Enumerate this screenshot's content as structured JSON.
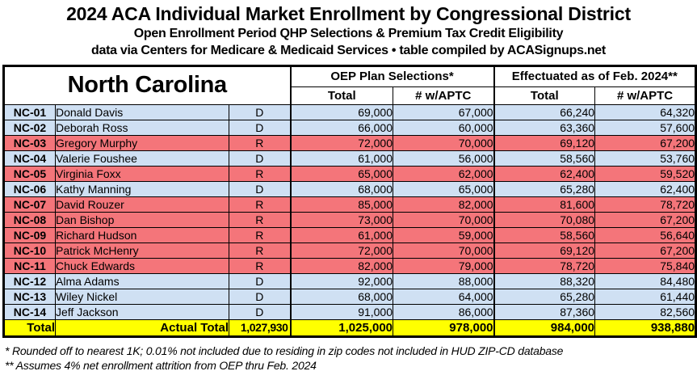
{
  "header": {
    "title": "2024 ACA Individual Market Enrollment by Congressional District",
    "subtitle": "Open Enrollment Period QHP Selections & Premium Tax Credit Eligibility",
    "source_line": "data via Centers for Medicare & Medicaid Services • table compiled by ACASignups.net"
  },
  "chart_data": {
    "type": "table",
    "title": "2024 ACA Individual Market Enrollment by Congressional District",
    "state": "North Carolina",
    "col_groups": [
      {
        "label": "OEP Plan Selections*",
        "cols": [
          "Total",
          "# w/APTC"
        ]
      },
      {
        "label": "Effectuated as of Feb. 2024**",
        "cols": [
          "Total",
          "# w/APTC"
        ]
      }
    ],
    "rows": [
      {
        "district": "NC-01",
        "rep": "Donald Davis",
        "party": "D",
        "values": [
          69000,
          67000,
          66240,
          64320
        ]
      },
      {
        "district": "NC-02",
        "rep": "Deborah Ross",
        "party": "D",
        "values": [
          66000,
          60000,
          63360,
          57600
        ]
      },
      {
        "district": "NC-03",
        "rep": "Gregory Murphy",
        "party": "R",
        "values": [
          72000,
          70000,
          69120,
          67200
        ]
      },
      {
        "district": "NC-04",
        "rep": "Valerie Foushee",
        "party": "D",
        "values": [
          61000,
          56000,
          58560,
          53760
        ]
      },
      {
        "district": "NC-05",
        "rep": "Virginia Foxx",
        "party": "R",
        "values": [
          65000,
          62000,
          62400,
          59520
        ]
      },
      {
        "district": "NC-06",
        "rep": "Kathy Manning",
        "party": "D",
        "values": [
          68000,
          65000,
          65280,
          62400
        ]
      },
      {
        "district": "NC-07",
        "rep": "David Rouzer",
        "party": "R",
        "values": [
          85000,
          82000,
          81600,
          78720
        ]
      },
      {
        "district": "NC-08",
        "rep": "Dan Bishop",
        "party": "R",
        "values": [
          73000,
          70000,
          70080,
          67200
        ]
      },
      {
        "district": "NC-09",
        "rep": "Richard Hudson",
        "party": "R",
        "values": [
          61000,
          59000,
          58560,
          56640
        ]
      },
      {
        "district": "NC-10",
        "rep": "Patrick McHenry",
        "party": "R",
        "values": [
          72000,
          70000,
          69120,
          67200
        ]
      },
      {
        "district": "NC-11",
        "rep": "Chuck Edwards",
        "party": "R",
        "values": [
          82000,
          79000,
          78720,
          75840
        ]
      },
      {
        "district": "NC-12",
        "rep": "Alma Adams",
        "party": "D",
        "values": [
          92000,
          88000,
          88320,
          84480
        ]
      },
      {
        "district": "NC-13",
        "rep": "Wiley Nickel",
        "party": "D",
        "values": [
          68000,
          64000,
          65280,
          61440
        ]
      },
      {
        "district": "NC-14",
        "rep": "Jeff Jackson",
        "party": "D",
        "values": [
          91000,
          86000,
          87360,
          82560
        ]
      }
    ],
    "total_row": {
      "label": "Total",
      "actual_total_label": "Actual Total",
      "actual_total": 1027930,
      "values": [
        1025000,
        978000,
        984000,
        938880
      ]
    },
    "colors": {
      "party": {
        "D": "#cfe0f3",
        "R": "#f4757a"
      },
      "total": "#ffff00"
    }
  },
  "footnotes": [
    "* Rounded off to nearest 1K; 0.01% not included due to residing in zip codes not included in HUD ZIP-CD database",
    "** Assumes 4% net enrollment attrition from OEP thru Feb. 2024"
  ]
}
